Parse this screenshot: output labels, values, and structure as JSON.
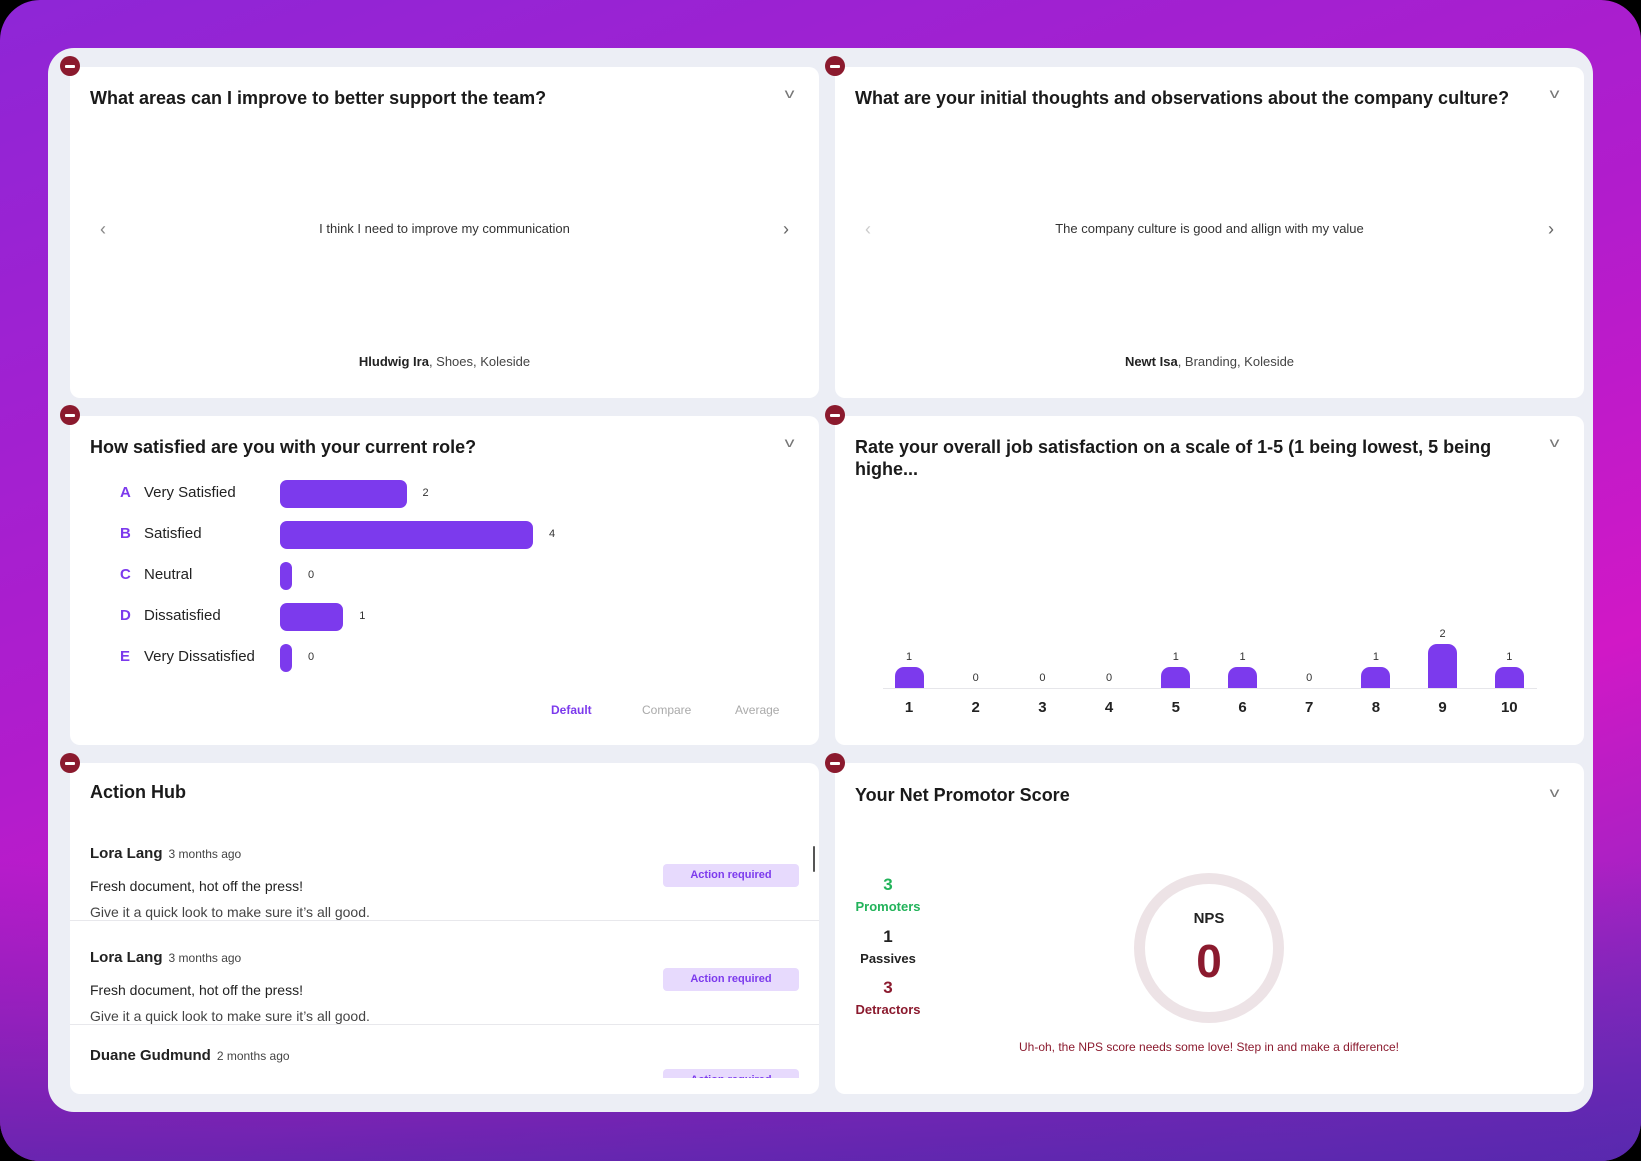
{
  "cards": {
    "improve": {
      "title": "What areas can I improve to better support the team?",
      "quote": "I think I need to improve my communication",
      "author_name": "Hludwig Ira",
      "author_meta": ", Shoes, Koleside"
    },
    "culture": {
      "title": "What are your initial thoughts and observations about the company culture?",
      "quote": "The company culture is good and allign with my value",
      "author_name": "Newt Isa",
      "author_meta": ", Branding, Koleside"
    },
    "satisfied": {
      "title": "How satisfied are you with your current role?",
      "tabs": [
        "Default",
        "Compare",
        "Average"
      ],
      "active_tab": "Default"
    },
    "rating": {
      "title": "Rate your overall job satisfaction on a scale of 1-5 (1 being lowest, 5 being highe..."
    },
    "action_hub": {
      "title": "Action Hub",
      "items": [
        {
          "name": "Lora Lang",
          "time": "3 months ago",
          "line1": "Fresh document, hot off the press!",
          "line2": "Give it a quick look to make sure it’s all good.",
          "badge": "Action required"
        },
        {
          "name": "Lora Lang",
          "time": "3 months ago",
          "line1": "Fresh document, hot off the press!",
          "line2": "Give it a quick look to make sure it’s all good.",
          "badge": "Action required"
        },
        {
          "name": "Duane Gudmund",
          "time": "2 months ago",
          "line1": "",
          "line2": "",
          "badge": "Action required"
        }
      ]
    },
    "nps": {
      "title": "Your Net Promotor Score",
      "promoters": {
        "count": "3",
        "label": "Promoters",
        "color": "#22b35a"
      },
      "passives": {
        "count": "1",
        "label": "Passives",
        "color": "#222222"
      },
      "detractors": {
        "count": "3",
        "label": "Detractors",
        "color": "#8b1a2e"
      },
      "gauge_label": "NPS",
      "score": "0",
      "message": "Uh-oh, the NPS score needs some love! Step in and make a difference!"
    }
  },
  "colors": {
    "accent": "#7c3aed",
    "remove": "#8b1a2e"
  },
  "chart_data": [
    {
      "type": "bar",
      "orientation": "horizontal",
      "letters": [
        "A",
        "B",
        "C",
        "D",
        "E"
      ],
      "categories": [
        "Very Satisfied",
        "Satisfied",
        "Neutral",
        "Dissatisfied",
        "Very Dissatisfied"
      ],
      "values": [
        2,
        4,
        0,
        1,
        0
      ]
    },
    {
      "type": "bar",
      "categories": [
        "1",
        "2",
        "3",
        "4",
        "5",
        "6",
        "7",
        "8",
        "9",
        "10"
      ],
      "values": [
        1,
        0,
        0,
        0,
        1,
        1,
        0,
        1,
        2,
        1
      ]
    }
  ]
}
